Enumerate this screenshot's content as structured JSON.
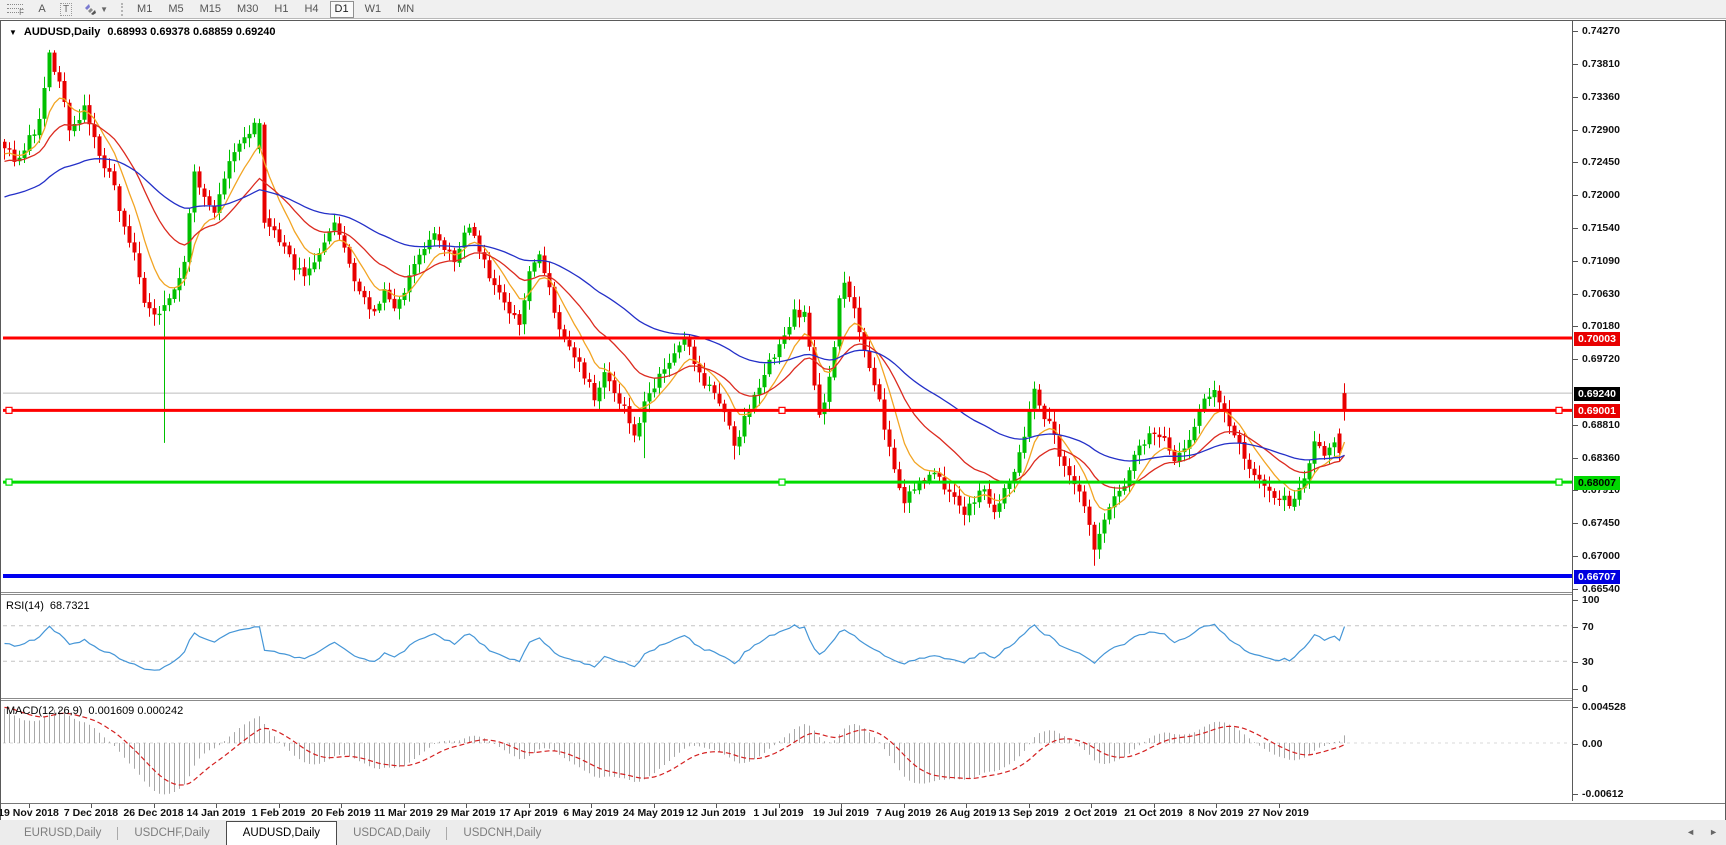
{
  "toolbar": {
    "fibonacci_glyph": "F",
    "text_label_button": "A",
    "text_box_button": "T",
    "timeframes": [
      {
        "label": "M1"
      },
      {
        "label": "M5"
      },
      {
        "label": "M15"
      },
      {
        "label": "M30"
      },
      {
        "label": "H1"
      },
      {
        "label": "H4"
      },
      {
        "label": "D1"
      },
      {
        "label": "W1"
      },
      {
        "label": "MN"
      }
    ],
    "active_timeframe": "D1"
  },
  "chart": {
    "title_symbol": "AUDUSD,Daily",
    "title_ohlc": "0.68993 0.69378 0.68859 0.69240"
  },
  "price_axis": {
    "ticks": [
      "0.74270",
      "0.73810",
      "0.73360",
      "0.72900",
      "0.72450",
      "0.72000",
      "0.71540",
      "0.71090",
      "0.70630",
      "0.70180",
      "0.69720",
      "0.68810",
      "0.68360",
      "0.67910",
      "0.67450",
      "0.67000",
      "0.66540"
    ],
    "top_price": 0.74381,
    "bottom_price": 0.66485
  },
  "chart_data": {
    "type": "candlestick",
    "symbol": "AUDUSD",
    "timeframe": "Daily",
    "bars_count": 269,
    "last_bar": {
      "open": 0.68993,
      "high": 0.69378,
      "low": 0.68859,
      "close": 0.6924
    },
    "current_price": {
      "value": "0.69240",
      "price": 0.6924
    },
    "horizontal_lines": [
      {
        "label": "0.70003",
        "price": 0.70003,
        "color": "#FF0000",
        "width": 3,
        "selected": false,
        "tag_bg": "#E80000",
        "tag_fg": "#fff"
      },
      {
        "label": "0.69001",
        "price": 0.69001,
        "color": "#FF0000",
        "width": 3,
        "selected": true,
        "tag_bg": "#E80000",
        "tag_fg": "#fff"
      },
      {
        "label": "0.68007",
        "price": 0.68007,
        "color": "#00DC00",
        "width": 3,
        "selected": true,
        "tag_bg": "#00D800",
        "tag_fg": "#000"
      },
      {
        "label": "0.66707",
        "price": 0.66707,
        "color": "#0000F0",
        "width": 4,
        "selected": false,
        "tag_bg": "#0000E0",
        "tag_fg": "#fff"
      }
    ],
    "close_anchors": [
      [
        0,
        0.727
      ],
      [
        2,
        0.7248
      ],
      [
        4,
        0.7262
      ],
      [
        7,
        0.73
      ],
      [
        9,
        0.739
      ],
      [
        11,
        0.7352
      ],
      [
        13,
        0.729
      ],
      [
        16,
        0.7318
      ],
      [
        19,
        0.7252
      ],
      [
        22,
        0.721
      ],
      [
        24,
        0.715
      ],
      [
        26,
        0.7112
      ],
      [
        28,
        0.7048
      ],
      [
        30,
        0.7026
      ],
      [
        32,
        0.7042
      ],
      [
        34,
        0.7068
      ],
      [
        36,
        0.7112
      ],
      [
        38,
        0.7228
      ],
      [
        40,
        0.7192
      ],
      [
        42,
        0.7168
      ],
      [
        44,
        0.7222
      ],
      [
        46,
        0.7258
      ],
      [
        48,
        0.728
      ],
      [
        50,
        0.7292
      ],
      [
        51,
        0.7298
      ],
      [
        52,
        0.716
      ],
      [
        54,
        0.7148
      ],
      [
        56,
        0.7124
      ],
      [
        58,
        0.7098
      ],
      [
        60,
        0.7086
      ],
      [
        62,
        0.7112
      ],
      [
        64,
        0.7136
      ],
      [
        66,
        0.7162
      ],
      [
        68,
        0.7125
      ],
      [
        70,
        0.7076
      ],
      [
        72,
        0.705
      ],
      [
        74,
        0.7042
      ],
      [
        76,
        0.7062
      ],
      [
        78,
        0.704
      ],
      [
        80,
        0.7066
      ],
      [
        82,
        0.71
      ],
      [
        84,
        0.7126
      ],
      [
        86,
        0.7142
      ],
      [
        88,
        0.712
      ],
      [
        90,
        0.7108
      ],
      [
        93,
        0.7158
      ],
      [
        95,
        0.712
      ],
      [
        97,
        0.7086
      ],
      [
        99,
        0.706
      ],
      [
        101,
        0.7032
      ],
      [
        103,
        0.7022
      ],
      [
        105,
        0.7096
      ],
      [
        107,
        0.711
      ],
      [
        109,
        0.7064
      ],
      [
        111,
        0.701
      ],
      [
        113,
        0.699
      ],
      [
        115,
        0.6962
      ],
      [
        117,
        0.694
      ],
      [
        118,
        0.6921
      ],
      [
        120,
        0.6948
      ],
      [
        122,
        0.692
      ],
      [
        124,
        0.6904
      ],
      [
        126,
        0.6868
      ],
      [
        128,
        0.691
      ],
      [
        130,
        0.693
      ],
      [
        132,
        0.696
      ],
      [
        134,
        0.6976
      ],
      [
        136,
        0.6996
      ],
      [
        138,
        0.6968
      ],
      [
        140,
        0.694
      ],
      [
        142,
        0.692
      ],
      [
        144,
        0.6896
      ],
      [
        146,
        0.685
      ],
      [
        148,
        0.6886
      ],
      [
        150,
        0.692
      ],
      [
        152,
        0.6955
      ],
      [
        154,
        0.6975
      ],
      [
        156,
        0.7
      ],
      [
        158,
        0.704
      ],
      [
        160,
        0.703
      ],
      [
        161,
        0.699
      ],
      [
        162,
        0.694
      ],
      [
        163,
        0.6892
      ],
      [
        164,
        0.6905
      ],
      [
        166,
        0.699
      ],
      [
        167,
        0.7062
      ],
      [
        168,
        0.7078
      ],
      [
        170,
        0.704
      ],
      [
        172,
        0.699
      ],
      [
        174,
        0.694
      ],
      [
        176,
        0.688
      ],
      [
        178,
        0.682
      ],
      [
        180,
        0.6775
      ],
      [
        182,
        0.679
      ],
      [
        184,
        0.6806
      ],
      [
        186,
        0.682
      ],
      [
        188,
        0.6792
      ],
      [
        190,
        0.6775
      ],
      [
        192,
        0.6757
      ],
      [
        194,
        0.6776
      ],
      [
        196,
        0.679
      ],
      [
        198,
        0.6756
      ],
      [
        200,
        0.679
      ],
      [
        202,
        0.6812
      ],
      [
        204,
        0.686
      ],
      [
        206,
        0.693
      ],
      [
        208,
        0.6894
      ],
      [
        210,
        0.6864
      ],
      [
        212,
        0.682
      ],
      [
        214,
        0.6796
      ],
      [
        216,
        0.6768
      ],
      [
        218,
        0.6712
      ],
      [
        220,
        0.6745
      ],
      [
        222,
        0.6776
      ],
      [
        224,
        0.6802
      ],
      [
        226,
        0.6838
      ],
      [
        228,
        0.6858
      ],
      [
        230,
        0.6868
      ],
      [
        232,
        0.6856
      ],
      [
        234,
        0.6836
      ],
      [
        236,
        0.6846
      ],
      [
        238,
        0.688
      ],
      [
        240,
        0.692
      ],
      [
        242,
        0.6928
      ],
      [
        244,
        0.6896
      ],
      [
        246,
        0.686
      ],
      [
        248,
        0.6838
      ],
      [
        250,
        0.681
      ],
      [
        252,
        0.6795
      ],
      [
        254,
        0.6782
      ],
      [
        256,
        0.6775
      ],
      [
        258,
        0.6772
      ],
      [
        260,
        0.681
      ],
      [
        262,
        0.6852
      ],
      [
        264,
        0.6843
      ],
      [
        266,
        0.686
      ],
      [
        267,
        0.685
      ],
      [
        268,
        0.6924
      ]
    ],
    "bar_overrides": [
      {
        "i": 32,
        "open": 0.7038,
        "close": 0.7046,
        "high": 0.7066,
        "low": 0.6855
      },
      {
        "i": 51,
        "open": 0.7262,
        "close": 0.7298,
        "high": 0.7304,
        "low": 0.7256
      },
      {
        "i": 52,
        "open": 0.7296,
        "close": 0.716,
        "high": 0.7299,
        "low": 0.7152
      },
      {
        "i": 128,
        "low": 0.6834
      },
      {
        "i": 146,
        "low": 0.6832
      },
      {
        "i": 218,
        "low": 0.6685
      },
      {
        "i": 267,
        "open": 0.6868,
        "close": 0.6841,
        "high": 0.6875,
        "low": 0.683
      },
      {
        "i": 268,
        "open": 0.68993,
        "high": 0.69378,
        "low": 0.68859,
        "close": 0.6924,
        "force_color": "down"
      }
    ],
    "ma_lines": [
      {
        "name": "fast-ma",
        "period": 8,
        "color": "#F2A524"
      },
      {
        "name": "mid-ma",
        "period": 21,
        "color": "#DC2B20"
      },
      {
        "name": "slow-ma",
        "period": 55,
        "color": "#2430C8"
      }
    ],
    "indicators": {
      "rsi": {
        "label": "RSI(14)",
        "value": "68.7321",
        "period": 14,
        "axis_ticks": [
          "100",
          "70",
          "30",
          "0"
        ],
        "axis_values": [
          100,
          70,
          30,
          0
        ],
        "level_lines": [
          70,
          30
        ],
        "line_color": "#4596D7"
      },
      "macd": {
        "label": "MACD(12,26,9)",
        "values": "0.001609 0.000242",
        "fast": 12,
        "slow": 26,
        "signal": 9,
        "axis_ticks": [
          "0.004528",
          "0.00",
          "-0.00612"
        ],
        "axis_values": [
          0.004528,
          0,
          -0.00612
        ],
        "hist_color": "#A8A8A8",
        "signal_color": "#D42020"
      }
    },
    "date_labels": [
      "19 Nov 2018",
      "7 Dec 2018",
      "26 Dec 2018",
      "14 Jan 2019",
      "1 Feb 2019",
      "20 Feb 2019",
      "11 Mar 2019",
      "29 Mar 2019",
      "17 Apr 2019",
      "6 May 2019",
      "24 May 2019",
      "12 Jun 2019",
      "1 Jul 2019",
      "19 Jul 2019",
      "7 Aug 2019",
      "26 Aug 2019",
      "13 Sep 2019",
      "2 Oct 2019",
      "21 Oct 2019",
      "8 Nov 2019",
      "27 Nov 2019"
    ],
    "colors": {
      "up": "#00C000",
      "down": "#E80000",
      "price_line": "#BCBCBC",
      "level_dash": "#C4C4C4"
    }
  },
  "tabbar": {
    "tabs": [
      {
        "label": "EURUSD,Daily",
        "active": false
      },
      {
        "label": "USDCHF,Daily",
        "active": false
      },
      {
        "label": "AUDUSD,Daily",
        "active": true
      },
      {
        "label": "USDCAD,Daily",
        "active": false
      },
      {
        "label": "USDCNH,Daily",
        "active": false
      }
    ],
    "scroll_left": "◄",
    "scroll_right": "►"
  }
}
